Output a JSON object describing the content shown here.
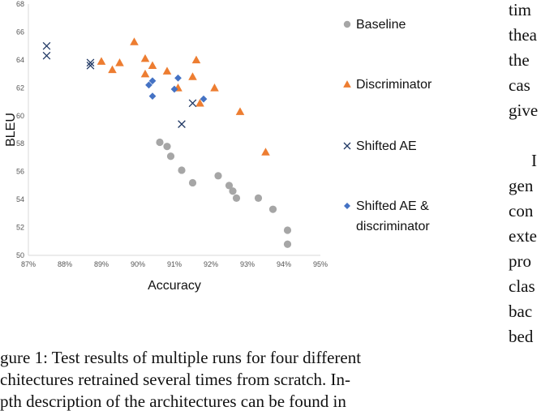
{
  "chart_data": {
    "type": "scatter",
    "xlabel": "Accuracy",
    "ylabel": "BLEU",
    "xlim": [
      0.87,
      0.95
    ],
    "ylim": [
      50,
      68
    ],
    "x_ticks": [
      "87%",
      "88%",
      "89%",
      "90%",
      "91%",
      "92%",
      "93%",
      "94%",
      "95%"
    ],
    "y_ticks": [
      "50",
      "52",
      "54",
      "56",
      "58",
      "60",
      "62",
      "64",
      "66",
      "68"
    ],
    "legend_position": "right",
    "series": [
      {
        "name": "Baseline",
        "marker": "circle",
        "color": "#a6a6a6",
        "points": [
          [
            0.906,
            58.1
          ],
          [
            0.908,
            57.8
          ],
          [
            0.909,
            57.1
          ],
          [
            0.912,
            56.1
          ],
          [
            0.915,
            55.2
          ],
          [
            0.922,
            55.7
          ],
          [
            0.925,
            55.0
          ],
          [
            0.926,
            54.6
          ],
          [
            0.927,
            54.1
          ],
          [
            0.933,
            54.1
          ],
          [
            0.937,
            53.3
          ],
          [
            0.941,
            51.8
          ],
          [
            0.941,
            50.8
          ]
        ]
      },
      {
        "name": "Discriminator",
        "marker": "triangle",
        "color": "#ed7d31",
        "points": [
          [
            0.89,
            63.9
          ],
          [
            0.893,
            63.3
          ],
          [
            0.895,
            63.8
          ],
          [
            0.899,
            65.3
          ],
          [
            0.902,
            64.1
          ],
          [
            0.902,
            63.0
          ],
          [
            0.904,
            63.6
          ],
          [
            0.908,
            63.2
          ],
          [
            0.911,
            62.0
          ],
          [
            0.916,
            64.0
          ],
          [
            0.915,
            62.8
          ],
          [
            0.917,
            60.9
          ],
          [
            0.921,
            62.0
          ],
          [
            0.928,
            60.3
          ],
          [
            0.935,
            57.4
          ]
        ]
      },
      {
        "name": "Shifted AE",
        "marker": "cross",
        "color": "#203864",
        "points": [
          [
            0.875,
            65.0
          ],
          [
            0.875,
            64.3
          ],
          [
            0.887,
            63.8
          ],
          [
            0.887,
            63.6
          ],
          [
            0.912,
            59.4
          ],
          [
            0.915,
            60.9
          ]
        ]
      },
      {
        "name": "Shifted AE & discriminator",
        "legend_lines": [
          "Shifted AE &",
          "discriminator"
        ],
        "marker": "diamond",
        "color": "#4472c4",
        "points": [
          [
            0.903,
            62.2
          ],
          [
            0.904,
            62.5
          ],
          [
            0.904,
            61.4
          ],
          [
            0.91,
            61.9
          ],
          [
            0.911,
            62.7
          ],
          [
            0.918,
            61.2
          ]
        ]
      }
    ]
  },
  "page_text": {
    "caption_lines": [
      "gure 1: Test results of multiple runs for four different",
      "chitectures retrained several times from scratch. In-",
      "pth description of the architectures can be found in"
    ],
    "side_lines": [
      "tim",
      "thea",
      "the",
      "cas",
      "give",
      "",
      "I",
      "gen",
      "con",
      "exte",
      "pro",
      "clas",
      "bac",
      "bed"
    ]
  }
}
